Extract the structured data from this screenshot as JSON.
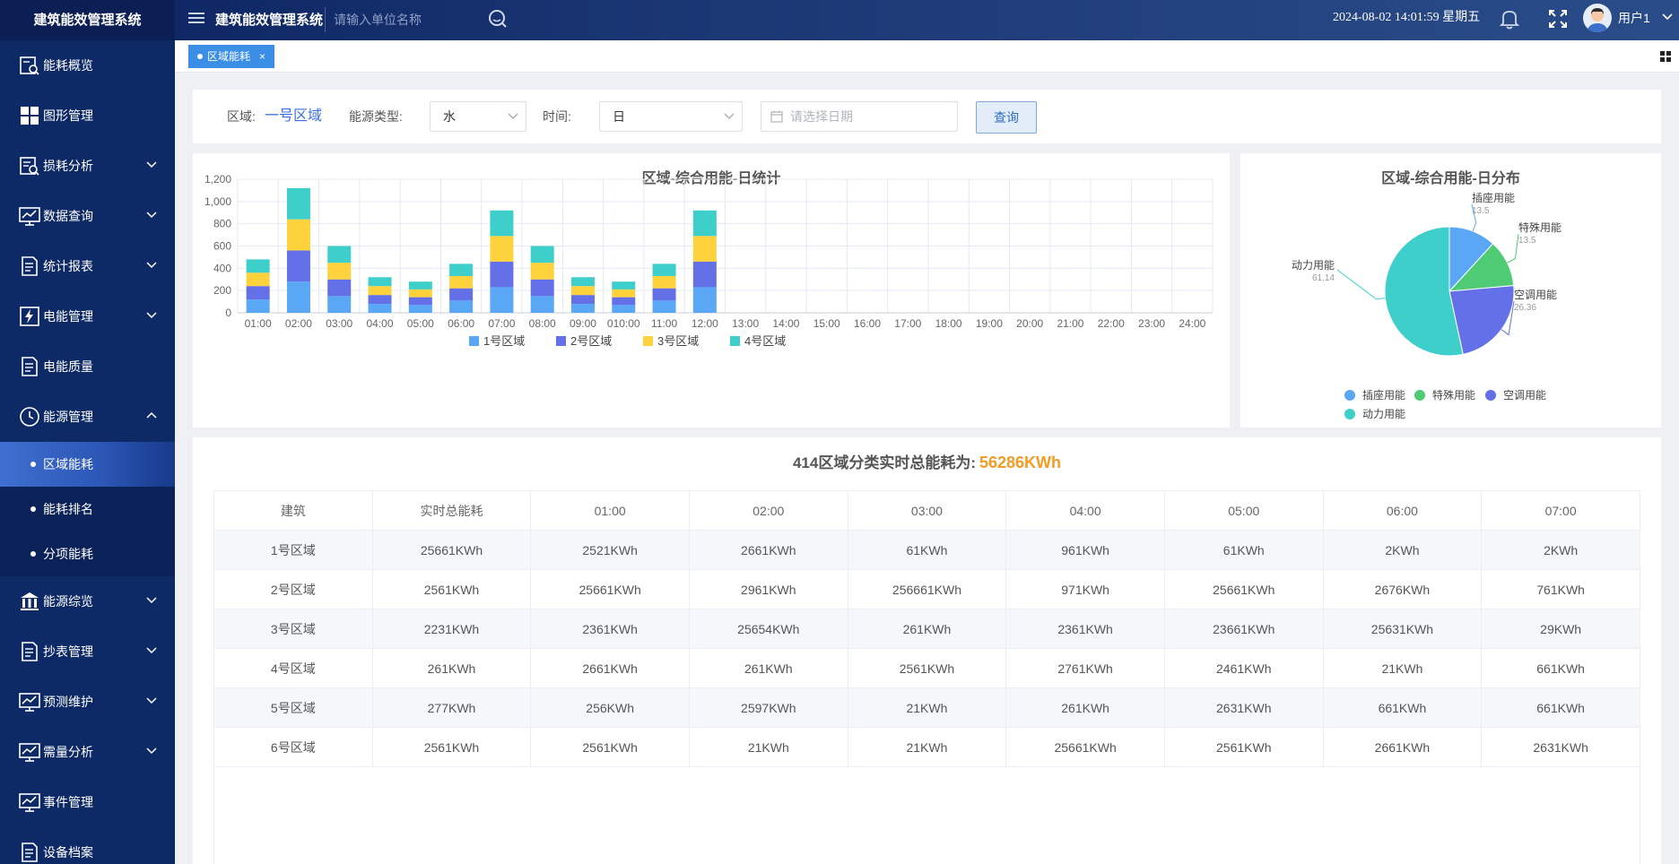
{
  "header": {
    "brand": "建筑能效管理系统",
    "app_title": "建筑能效管理系统",
    "search_placeholder": "请输入单位名称",
    "datetime": "2024-08-02 14:01:59 星期五",
    "username": "用户1"
  },
  "sidebar": {
    "items": [
      {
        "label": "能耗概览",
        "icon": "search-chart-icon",
        "caret": false
      },
      {
        "label": "图形管理",
        "icon": "grid-blocks-icon",
        "caret": false
      },
      {
        "label": "损耗分析",
        "icon": "search-list-icon",
        "caret": true
      },
      {
        "label": "数据查询",
        "icon": "monitor-chart-icon",
        "caret": true
      },
      {
        "label": "统计报表",
        "icon": "report-edit-icon",
        "caret": true
      },
      {
        "label": "电能管理",
        "icon": "lightning-icon",
        "caret": true
      },
      {
        "label": "电能质量",
        "icon": "report-edit-icon",
        "caret": false
      },
      {
        "label": "能源管理",
        "icon": "clock-icon",
        "caret": true,
        "expanded": true
      }
    ],
    "sub_items": [
      {
        "label": "区域能耗",
        "active": true
      },
      {
        "label": "能耗排名",
        "active": false
      },
      {
        "label": "分项能耗",
        "active": false
      }
    ],
    "items_after": [
      {
        "label": "能源综览",
        "icon": "bank-icon",
        "caret": true
      },
      {
        "label": "抄表管理",
        "icon": "report-edit-icon",
        "caret": true
      },
      {
        "label": "预测维护",
        "icon": "monitor-chart-icon",
        "caret": true
      },
      {
        "label": "需量分析",
        "icon": "monitor-chart-icon",
        "caret": true
      },
      {
        "label": "事件管理",
        "icon": "monitor-chart-icon",
        "caret": false
      },
      {
        "label": "设备档案",
        "icon": "report-edit-icon",
        "caret": false
      }
    ]
  },
  "tabs": [
    {
      "label": "区域能耗",
      "close": "×"
    }
  ],
  "filter": {
    "area_label": "区域:",
    "area_value": "一号区域",
    "energy_type_label": "能源类型:",
    "energy_type_value": "水",
    "time_label": "时间:",
    "time_value": "日",
    "date_placeholder": "请选择日期",
    "query_label": "查询"
  },
  "colors": {
    "series": [
      "#5aa8f5",
      "#6470e8",
      "#fdd23d",
      "#3fcfcb"
    ],
    "pie": [
      "#5aa8f5",
      "#4ecb73",
      "#6470e8",
      "#3fcfcb"
    ],
    "accent": "#3a8ee6",
    "total_value": "#f59a23"
  },
  "chart_data": [
    {
      "type": "bar",
      "stacked": true,
      "title": "区域-综合用能-日统计",
      "categories": [
        "01:00",
        "02:00",
        "03:00",
        "04:00",
        "05:00",
        "06:00",
        "07:00",
        "08:00",
        "09:00",
        "010:00",
        "11:00",
        "12:00",
        "13:00",
        "14:00",
        "15:00",
        "16:00",
        "17:00",
        "18:00",
        "19:00",
        "20:00",
        "21:00",
        "22:00",
        "23:00",
        "24:00"
      ],
      "series": [
        {
          "name": "1号区域",
          "values": [
            120,
            280,
            150,
            80,
            70,
            110,
            230,
            150,
            80,
            70,
            110,
            230,
            0,
            0,
            0,
            0,
            0,
            0,
            0,
            0,
            0,
            0,
            0,
            0
          ]
        },
        {
          "name": "2号区域",
          "values": [
            120,
            280,
            150,
            80,
            70,
            110,
            230,
            150,
            80,
            70,
            110,
            230,
            0,
            0,
            0,
            0,
            0,
            0,
            0,
            0,
            0,
            0,
            0,
            0
          ]
        },
        {
          "name": "3号区域",
          "values": [
            120,
            280,
            150,
            80,
            70,
            110,
            230,
            150,
            80,
            70,
            110,
            230,
            0,
            0,
            0,
            0,
            0,
            0,
            0,
            0,
            0,
            0,
            0,
            0
          ]
        },
        {
          "name": "4号区域",
          "values": [
            120,
            280,
            150,
            80,
            70,
            110,
            230,
            150,
            80,
            70,
            110,
            230,
            0,
            0,
            0,
            0,
            0,
            0,
            0,
            0,
            0,
            0,
            0,
            0
          ]
        }
      ],
      "yticks": [
        "0",
        "200",
        "400",
        "600",
        "800",
        "1,000",
        "1,200"
      ],
      "ylim": [
        0,
        1200
      ],
      "grid": true,
      "legend": "bottom"
    },
    {
      "type": "pie",
      "title": "区域-综合用能-日分布",
      "slices": [
        {
          "name": "插座用能",
          "value": 13.5
        },
        {
          "name": "特殊用能",
          "value": 13.5
        },
        {
          "name": "空调用能",
          "value": 26.36
        },
        {
          "name": "动力用能",
          "value": 61.14
        }
      ],
      "legend": "bottom"
    }
  ],
  "table": {
    "title": "414区域分类实时总能耗为:",
    "total_value": "56286KWh",
    "headers": [
      "建筑",
      "实时总能耗",
      "01:00",
      "02:00",
      "03:00",
      "04:00",
      "05:00",
      "06:00",
      "07:00"
    ],
    "rows": [
      [
        "1号区域",
        "25661KWh",
        "2521KWh",
        "2661KWh",
        "61KWh",
        "961KWh",
        "61KWh",
        "2KWh",
        "2KWh"
      ],
      [
        "2号区域",
        "2561KWh",
        "25661KWh",
        "2961KWh",
        "256661KWh",
        "971KWh",
        "25661KWh",
        "2676KWh",
        "761KWh"
      ],
      [
        "3号区域",
        "2231KWh",
        "2361KWh",
        "25654KWh",
        "261KWh",
        "2361KWh",
        "23661KWh",
        "25631KWh",
        "29KWh"
      ],
      [
        "4号区域",
        "261KWh",
        "2661KWh",
        "261KWh",
        "2561KWh",
        "2761KWh",
        "2461KWh",
        "21KWh",
        "661KWh"
      ],
      [
        "5号区域",
        "277KWh",
        "256KWh",
        "2597KWh",
        "21KWh",
        "261KWh",
        "2631KWh",
        "661KWh",
        "661KWh"
      ],
      [
        "6号区域",
        "2561KWh",
        "2561KWh",
        "21KWh",
        "21KWh",
        "25661KWh",
        "2561KWh",
        "2661KWh",
        "2631KWh"
      ]
    ]
  }
}
